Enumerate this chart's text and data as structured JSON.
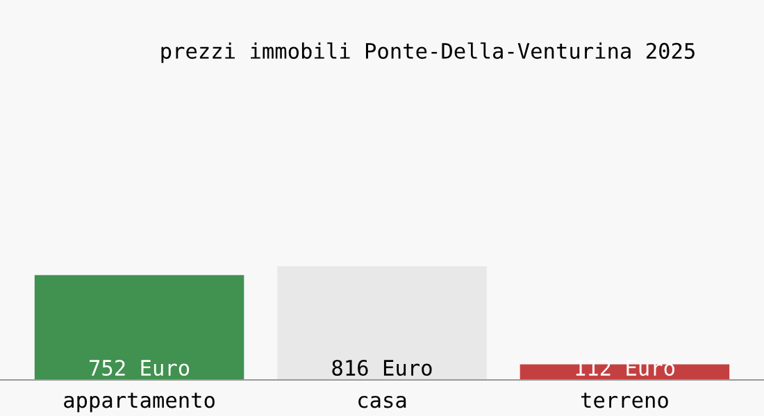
{
  "chart_data": {
    "type": "bar",
    "title": "prezzi immobili Ponte-Della-Venturina 2025",
    "categories": [
      "appartamento",
      "casa",
      "terreno"
    ],
    "values": [
      752,
      816,
      112
    ],
    "colors": [
      "#419150",
      "#e8e8e8",
      "#c44040"
    ],
    "value_labels": [
      "752 Euro",
      "816 Euro",
      "112 Euro"
    ],
    "grid": false,
    "legend": false,
    "tick_labels": "x"
  }
}
